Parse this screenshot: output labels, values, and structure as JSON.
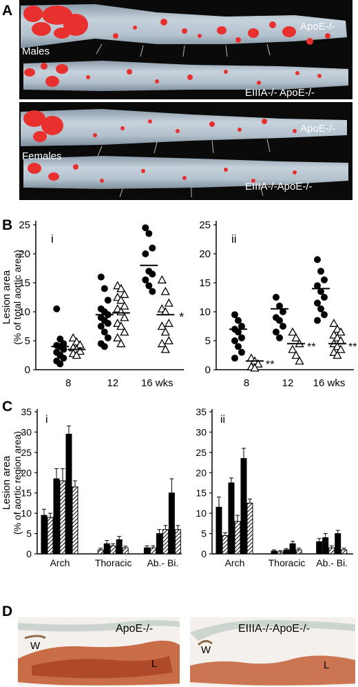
{
  "panels": {
    "A": "A",
    "B": "B",
    "C": "C",
    "D": "D"
  },
  "panelA": {
    "top": {
      "group": "Males",
      "label1": "ApoE-/-",
      "label2": "EIIIA-/- ApoE-/-"
    },
    "bottom": {
      "group": "Females",
      "label1": "ApoE-/-",
      "label2": "EIIIA-/-ApoE-/-"
    }
  },
  "panelB": {
    "ylabel_line1": "Lesion area",
    "ylabel_line2": "(% of total aortic area)",
    "xticks": [
      "8",
      "12",
      "16 wks"
    ],
    "left": {
      "label": "i",
      "yticks": [
        "0",
        "5",
        "10",
        "15",
        "20",
        "25"
      ],
      "ylim": [
        0,
        25
      ],
      "star16": "*",
      "groups": [
        {
          "x": "8",
          "filled": [
            10.5,
            5.3,
            4.5,
            4.2,
            4.0,
            3.5,
            3.0,
            2.5,
            2.0,
            1.5,
            1.0
          ],
          "open": [
            5.5,
            4.8,
            4.3,
            3.8,
            3.5,
            3.2,
            2.8,
            2.5
          ],
          "mean_filled": 4.0,
          "mean_open": 3.5
        },
        {
          "x": "12",
          "filled": [
            16.0,
            14.0,
            12.0,
            10.5,
            10.0,
            9.5,
            9.0,
            8.5,
            8.0,
            7.5,
            6.5,
            5.5,
            4.5,
            4.0
          ],
          "open": [
            14.5,
            14.0,
            13.0,
            12.5,
            12.0,
            11.0,
            10.5,
            10.0,
            9.0,
            8.0,
            7.5,
            6.5,
            5.5,
            4.5
          ],
          "mean_filled": 9.5,
          "mean_open": 9.8
        },
        {
          "x": "16 wks",
          "filled": [
            24.5,
            23.5,
            21.0,
            20.0,
            17.0,
            16.5,
            15.5,
            14.5,
            13.5
          ],
          "open": [
            15.5,
            13.5,
            11.5,
            10.5,
            10.0,
            8.0,
            7.5,
            6.5,
            5.0,
            4.5,
            3.5
          ],
          "mean_filled": 18.0,
          "mean_open": 9.5
        }
      ]
    },
    "right": {
      "label": "ii",
      "yticks": [
        "0",
        "5",
        "10",
        "15",
        "20",
        "25"
      ],
      "ylim": [
        0,
        25
      ],
      "stars": [
        "**",
        "**",
        "**"
      ],
      "groups": [
        {
          "x": "8",
          "filled": [
            9.5,
            8.5,
            7.5,
            7.0,
            6.5,
            5.5,
            5.0,
            4.0,
            3.0,
            2.0
          ],
          "open": [
            2.0,
            1.5,
            1.0,
            0.5,
            0.3
          ],
          "mean_filled": 7.0,
          "mean_open": 1.5
        },
        {
          "x": "12",
          "filled": [
            12.5,
            11.0,
            10.0,
            9.0,
            8.5,
            7.5,
            6.5,
            5.5
          ],
          "open": [
            6.5,
            5.5,
            4.5,
            3.5,
            2.5,
            1.5
          ],
          "mean_filled": 10.5,
          "mean_open": 4.5
        },
        {
          "x": "16 wks",
          "filled": [
            19.0,
            17.0,
            15.5,
            14.5,
            13.5,
            12.5,
            11.5,
            10.5,
            9.5,
            8.5
          ],
          "open": [
            8.0,
            7.0,
            6.5,
            6.0,
            5.5,
            5.0,
            4.5,
            4.0,
            3.5,
            3.0,
            2.5
          ],
          "mean_filled": 14.0,
          "mean_open": 4.5
        }
      ]
    }
  },
  "panelC": {
    "ylabel_line1": "Lesion area",
    "ylabel_line2": "(% of aortic region area)",
    "regions": [
      "Arch",
      "Thoracic",
      "Ab.- Bi."
    ],
    "left": {
      "label": "i",
      "yticks": [
        "0",
        "5",
        "10",
        "15",
        "20",
        "25",
        "30",
        "35"
      ],
      "ylim": [
        0,
        35
      ],
      "groups": [
        [
          {
            "v": 9.5,
            "e": 1.5,
            "k": "f"
          },
          {
            "v": 9.0,
            "e": 1.0,
            "k": "h"
          },
          {
            "v": 18.5,
            "e": 2.5,
            "k": "f"
          },
          {
            "v": 18.0,
            "e": 3.0,
            "k": "h"
          },
          {
            "v": 29.5,
            "e": 2.0,
            "k": "f"
          },
          {
            "v": 16.5,
            "e": 1.5,
            "k": "h"
          }
        ],
        [
          {
            "v": 1.0,
            "e": 0.4,
            "k": "h"
          },
          {
            "v": 2.5,
            "e": 0.8,
            "k": "f"
          },
          {
            "v": 2.0,
            "e": 0.5,
            "k": "h"
          },
          {
            "v": 3.5,
            "e": 0.8,
            "k": "f"
          },
          {
            "v": 1.5,
            "e": 0.4,
            "k": "h"
          }
        ],
        [
          {
            "v": 1.5,
            "e": 0.5,
            "k": "f"
          },
          {
            "v": 1.5,
            "e": 0.5,
            "k": "h"
          },
          {
            "v": 5.0,
            "e": 1.0,
            "k": "f"
          },
          {
            "v": 6.0,
            "e": 1.0,
            "k": "h"
          },
          {
            "v": 15.0,
            "e": 3.5,
            "k": "f"
          },
          {
            "v": 6.0,
            "e": 1.0,
            "k": "h"
          }
        ]
      ]
    },
    "right": {
      "label": "ii",
      "yticks": [
        "0",
        "5",
        "10",
        "15",
        "20",
        "25",
        "30",
        "35"
      ],
      "ylim": [
        0,
        35
      ],
      "groups": [
        [
          {
            "v": 11.5,
            "e": 2.5,
            "k": "f"
          },
          {
            "v": 4.5,
            "e": 0.7,
            "k": "h"
          },
          {
            "v": 17.5,
            "e": 1.2,
            "k": "f"
          },
          {
            "v": 8.0,
            "e": 1.5,
            "k": "h"
          },
          {
            "v": 23.5,
            "e": 2.5,
            "k": "f"
          },
          {
            "v": 12.5,
            "e": 1.0,
            "k": "h"
          }
        ],
        [
          {
            "v": 0.7,
            "e": 0.3,
            "k": "f"
          },
          {
            "v": 0.5,
            "e": 0.3,
            "k": "h"
          },
          {
            "v": 1.0,
            "e": 0.3,
            "k": "f"
          },
          {
            "v": 2.5,
            "e": 0.6,
            "k": "f"
          },
          {
            "v": 1.0,
            "e": 0.4,
            "k": "h"
          }
        ],
        [
          {
            "v": 3.0,
            "e": 0.8,
            "k": "f"
          },
          {
            "v": 4.0,
            "e": 1.0,
            "k": "f"
          },
          {
            "v": 1.5,
            "e": 0.5,
            "k": "h"
          },
          {
            "v": 5.0,
            "e": 0.8,
            "k": "f"
          },
          {
            "v": 1.0,
            "e": 0.4,
            "k": "h"
          }
        ]
      ]
    }
  },
  "panelD": {
    "left": {
      "title": "ApoE-/-",
      "w": "W",
      "l": "L"
    },
    "right": {
      "title": "EIIIA-/-ApoE-/-",
      "w": "W",
      "l": "L"
    }
  },
  "colors": {
    "lesion": "#e8312f",
    "aorta": "#b9c6d2",
    "background": "#0a0a0a",
    "stain": "#c0562c"
  }
}
